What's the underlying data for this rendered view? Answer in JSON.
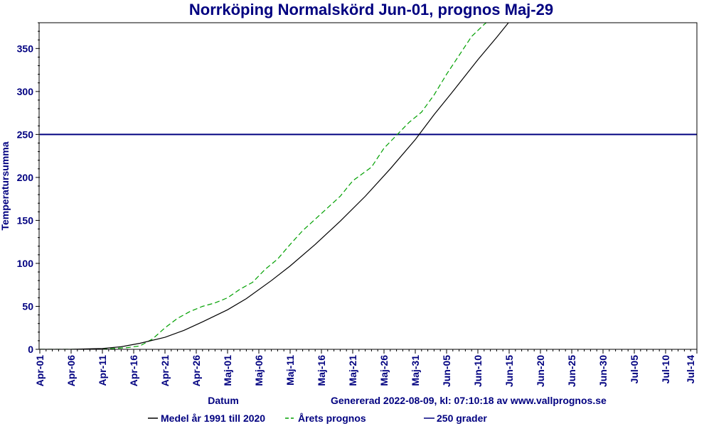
{
  "chart_data": {
    "type": "line",
    "title": "Norrköping Normalskörd Jun-01, prognos Maj-29",
    "ylabel": "Temperatursumma",
    "xlabel": "Datum",
    "generated_text": "Genererad 2022-08-09, kl: 07:10:18 av www.vallprognos.se",
    "ylim": [
      0,
      380
    ],
    "xlim": [
      "2022-04-01",
      "2022-07-15"
    ],
    "x_ticks": [
      "Apr-01",
      "Apr-06",
      "Apr-11",
      "Apr-16",
      "Apr-21",
      "Apr-26",
      "Maj-01",
      "Maj-06",
      "Maj-11",
      "Maj-16",
      "Maj-21",
      "Maj-26",
      "Maj-31",
      "Jun-05",
      "Jun-10",
      "Jun-15",
      "Jun-20",
      "Jun-25",
      "Jun-30",
      "Jul-05",
      "Jul-10",
      "Jul-14"
    ],
    "y_ticks": [
      0,
      50,
      100,
      150,
      200,
      250,
      300,
      350
    ],
    "grid": false,
    "legend_position": "bottom",
    "series": [
      {
        "name": "Medel år 1991 till 2020",
        "color": "#000000",
        "style": "solid",
        "x": [
          "2022-04-01",
          "2022-04-06",
          "2022-04-11",
          "2022-04-14",
          "2022-04-17",
          "2022-04-21",
          "2022-04-24",
          "2022-04-27",
          "2022-05-01",
          "2022-05-04",
          "2022-05-08",
          "2022-05-11",
          "2022-05-15",
          "2022-05-19",
          "2022-05-23",
          "2022-05-27",
          "2022-05-31",
          "2022-06-03",
          "2022-06-06",
          "2022-06-10",
          "2022-06-13",
          "2022-06-16"
        ],
        "values": [
          0,
          0,
          1,
          3,
          7,
          14,
          22,
          32,
          46,
          59,
          80,
          97,
          122,
          149,
          178,
          210,
          244,
          273,
          300,
          337,
          363,
          390
        ]
      },
      {
        "name": "Årets prognos",
        "color": "#00a000",
        "style": "dashed",
        "x": [
          "2022-04-01",
          "2022-04-06",
          "2022-04-11",
          "2022-04-15",
          "2022-04-17",
          "2022-04-19",
          "2022-04-21",
          "2022-04-23",
          "2022-04-25",
          "2022-04-27",
          "2022-04-29",
          "2022-05-01",
          "2022-05-03",
          "2022-05-05",
          "2022-05-07",
          "2022-05-09",
          "2022-05-11",
          "2022-05-13",
          "2022-05-16",
          "2022-05-19",
          "2022-05-21",
          "2022-05-24",
          "2022-05-26",
          "2022-05-28",
          "2022-05-30",
          "2022-06-01",
          "2022-06-03",
          "2022-06-05",
          "2022-06-07",
          "2022-06-09",
          "2022-06-11",
          "2022-06-13",
          "2022-06-15"
        ],
        "values": [
          0,
          0,
          0,
          2,
          4,
          12,
          25,
          36,
          44,
          50,
          54,
          60,
          70,
          78,
          93,
          105,
          122,
          138,
          158,
          178,
          196,
          212,
          234,
          249,
          264,
          276,
          296,
          320,
          342,
          364,
          378,
          390,
          400
        ]
      },
      {
        "name": "250 grader",
        "color": "#000080",
        "style": "solid",
        "x": [
          "2022-04-01",
          "2022-07-15"
        ],
        "values": [
          250,
          250
        ]
      }
    ]
  }
}
